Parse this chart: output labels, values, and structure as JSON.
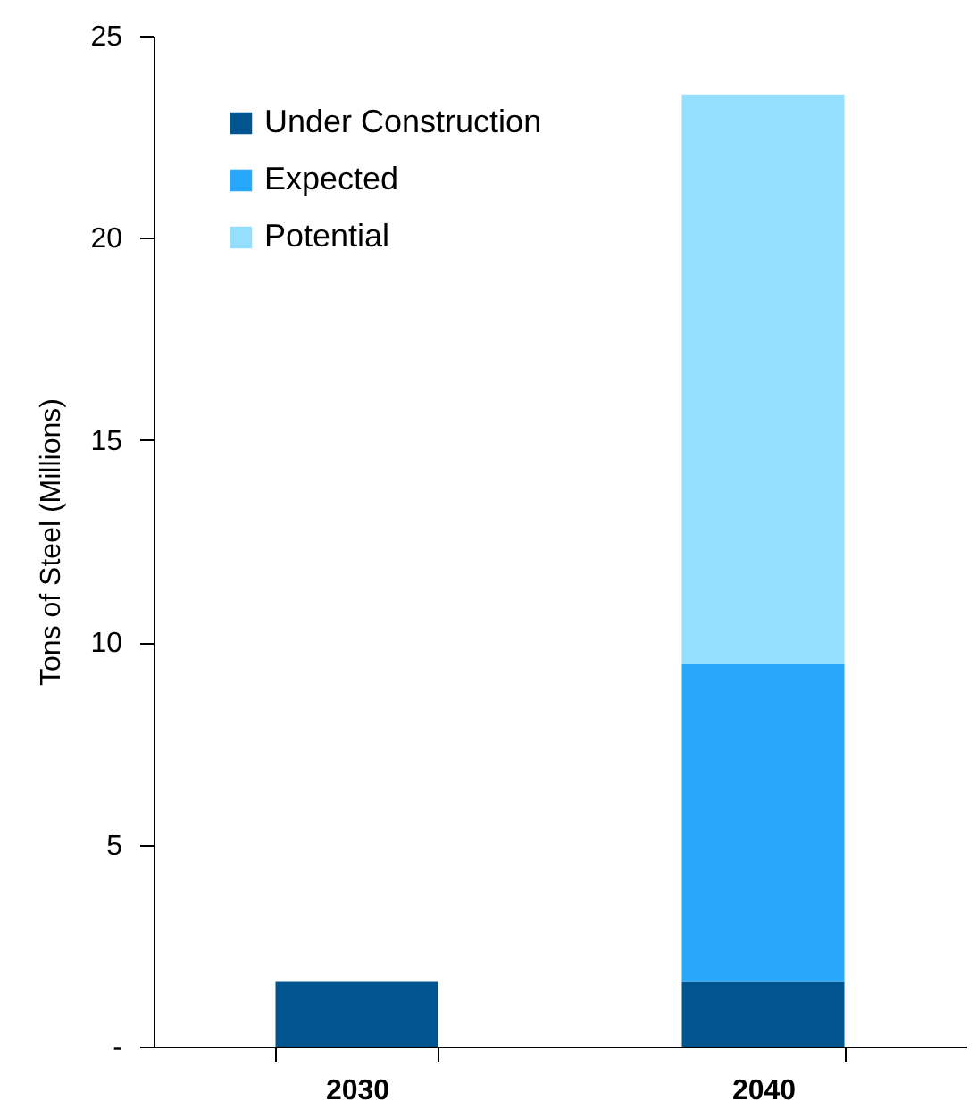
{
  "chart_data": {
    "type": "bar",
    "stacked": true,
    "ylabel": "Tons of Steel (Millions)",
    "categories": [
      "2030",
      "2040"
    ],
    "series": [
      {
        "name": "Under Construction",
        "color": "#00558f",
        "values": [
          1.6,
          1.6
        ]
      },
      {
        "name": "Expected",
        "color": "#27a8fb",
        "values": [
          null,
          7.85
        ]
      },
      {
        "name": "Potential",
        "color": "#94dffe",
        "values": [
          null,
          14.1
        ]
      }
    ],
    "ylim": [
      0,
      25
    ],
    "yticks": [
      {
        "value": 0,
        "label": "-"
      },
      5,
      10,
      15,
      20,
      25
    ],
    "legend": "top left",
    "grid": false
  }
}
